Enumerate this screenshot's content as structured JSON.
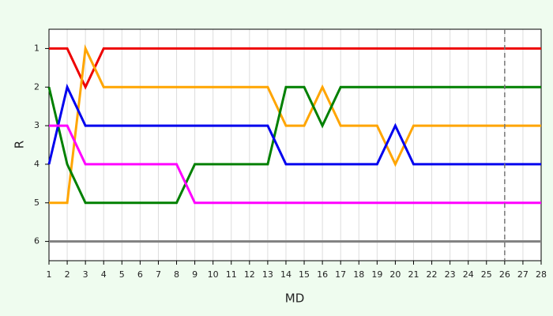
{
  "chart_data": {
    "type": "line",
    "x_label": "MD",
    "y_label": "R",
    "x": [
      1,
      2,
      3,
      4,
      5,
      6,
      7,
      8,
      9,
      10,
      11,
      12,
      13,
      14,
      15,
      16,
      17,
      18,
      19,
      20,
      21,
      22,
      23,
      24,
      25,
      26,
      27,
      28
    ],
    "series": [
      {
        "color": "#ee0000",
        "values": [
          1,
          1,
          2,
          1,
          1,
          1,
          1,
          1,
          1,
          1,
          1,
          1,
          1,
          1,
          1,
          1,
          1,
          1,
          1,
          1,
          1,
          1,
          1,
          1,
          1,
          1,
          1,
          1
        ]
      },
      {
        "color": "#ffa500",
        "values": [
          5,
          5,
          1,
          2,
          2,
          2,
          2,
          2,
          2,
          2,
          2,
          2,
          2,
          3,
          3,
          2,
          3,
          3,
          3,
          4,
          3,
          3,
          3,
          3,
          3,
          3,
          3,
          3
        ]
      },
      {
        "color": "#008000",
        "values": [
          2,
          4,
          5,
          5,
          5,
          5,
          5,
          5,
          4,
          4,
          4,
          4,
          4,
          2,
          2,
          3,
          2,
          2,
          2,
          2,
          2,
          2,
          2,
          2,
          2,
          2,
          2,
          2
        ]
      },
      {
        "color": "#0000ee",
        "values": [
          4,
          2,
          3,
          3,
          3,
          3,
          3,
          3,
          3,
          3,
          3,
          3,
          3,
          4,
          4,
          4,
          4,
          4,
          4,
          3,
          4,
          4,
          4,
          4,
          4,
          4,
          4,
          4
        ]
      },
      {
        "color": "#ff00ff",
        "values": [
          3,
          3,
          4,
          4,
          4,
          4,
          4,
          4,
          5,
          5,
          5,
          5,
          5,
          5,
          5,
          5,
          5,
          5,
          5,
          5,
          5,
          5,
          5,
          5,
          5,
          5,
          5,
          5
        ]
      },
      {
        "color": "#808080",
        "values": [
          6,
          6,
          6,
          6,
          6,
          6,
          6,
          6,
          6,
          6,
          6,
          6,
          6,
          6,
          6,
          6,
          6,
          6,
          6,
          6,
          6,
          6,
          6,
          6,
          6,
          6,
          6,
          6
        ]
      }
    ],
    "xlim": [
      1,
      28
    ],
    "ylim": [
      6.5,
      0.5
    ],
    "xticks": [
      1,
      2,
      3,
      4,
      5,
      6,
      7,
      8,
      9,
      10,
      11,
      12,
      13,
      14,
      15,
      16,
      17,
      18,
      19,
      20,
      21,
      22,
      23,
      24,
      25,
      26,
      27,
      28
    ],
    "yticks": [
      1,
      2,
      3,
      4,
      5,
      6
    ],
    "grid": "x",
    "reference_x": 26
  }
}
